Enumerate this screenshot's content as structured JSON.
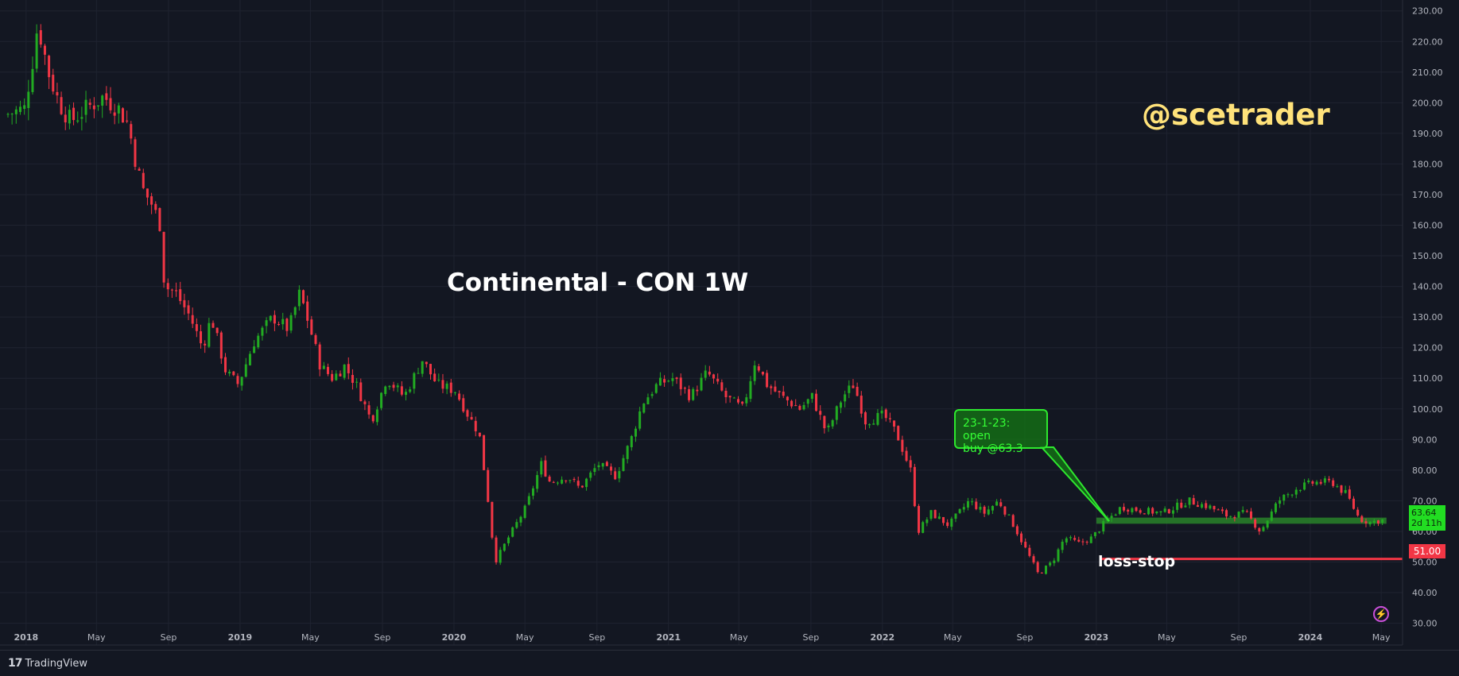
{
  "chart_data": {
    "type": "candlestick",
    "title": "Continental - CON 1W",
    "watermark": "@scetrader",
    "ylim": [
      26,
      232
    ],
    "y_ticks": [
      30,
      40,
      50,
      60,
      70,
      80,
      90,
      100,
      110,
      120,
      130,
      140,
      150,
      160,
      170,
      180,
      190,
      200,
      210,
      220,
      230
    ],
    "y_tick_labels": [
      "30.00",
      "40.00",
      "50.00",
      "60.00",
      "70.00",
      "80.00",
      "90.00",
      "100.00",
      "110.00",
      "120.00",
      "130.00",
      "140.00",
      "150.00",
      "160.00",
      "170.00",
      "180.00",
      "190.00",
      "200.00",
      "210.00",
      "220.00",
      "230.00"
    ],
    "x_range": [
      "2017-12-01",
      "2024-06-01"
    ],
    "x_ticks": [
      {
        "date": "2018-01-01",
        "label": "2018",
        "bold": true
      },
      {
        "date": "2018-05-01",
        "label": "May"
      },
      {
        "date": "2018-09-01",
        "label": "Sep"
      },
      {
        "date": "2019-01-01",
        "label": "2019",
        "bold": true
      },
      {
        "date": "2019-05-01",
        "label": "May"
      },
      {
        "date": "2019-09-01",
        "label": "Sep"
      },
      {
        "date": "2020-01-01",
        "label": "2020",
        "bold": true
      },
      {
        "date": "2020-05-01",
        "label": "May"
      },
      {
        "date": "2020-09-01",
        "label": "Sep"
      },
      {
        "date": "2021-01-01",
        "label": "2021",
        "bold": true
      },
      {
        "date": "2021-05-01",
        "label": "May"
      },
      {
        "date": "2021-09-01",
        "label": "Sep"
      },
      {
        "date": "2022-01-01",
        "label": "2022",
        "bold": true
      },
      {
        "date": "2022-05-01",
        "label": "May"
      },
      {
        "date": "2022-09-01",
        "label": "Sep"
      },
      {
        "date": "2023-01-01",
        "label": "2023",
        "bold": true
      },
      {
        "date": "2023-05-01",
        "label": "May"
      },
      {
        "date": "2023-09-01",
        "label": "Sep"
      },
      {
        "date": "2024-01-01",
        "label": "2024",
        "bold": true
      },
      {
        "date": "2024-05-01",
        "label": "May"
      }
    ],
    "price_path": [
      [
        "2017-12-01",
        196
      ],
      [
        "2018-01-05",
        198
      ],
      [
        "2018-01-20",
        215
      ],
      [
        "2018-01-28",
        226
      ],
      [
        "2018-02-15",
        210
      ],
      [
        "2018-03-05",
        200
      ],
      [
        "2018-03-25",
        194
      ],
      [
        "2018-04-20",
        198
      ],
      [
        "2018-05-20",
        202
      ],
      [
        "2018-06-15",
        198
      ],
      [
        "2018-07-01",
        193
      ],
      [
        "2018-07-15",
        180
      ],
      [
        "2018-07-25",
        172
      ],
      [
        "2018-08-10",
        167
      ],
      [
        "2018-08-25",
        160
      ],
      [
        "2018-09-01",
        140
      ],
      [
        "2018-09-20",
        138
      ],
      [
        "2018-10-15",
        130
      ],
      [
        "2018-11-05",
        120
      ],
      [
        "2018-11-20",
        130
      ],
      [
        "2018-12-15",
        112
      ],
      [
        "2019-01-05",
        108
      ],
      [
        "2019-02-01",
        122
      ],
      [
        "2019-03-05",
        130
      ],
      [
        "2019-04-01",
        126
      ],
      [
        "2019-04-20",
        138
      ],
      [
        "2019-05-05",
        128
      ],
      [
        "2019-05-25",
        114
      ],
      [
        "2019-06-15",
        110
      ],
      [
        "2019-07-05",
        114
      ],
      [
        "2019-07-25",
        108
      ],
      [
        "2019-08-20",
        96
      ],
      [
        "2019-09-15",
        110
      ],
      [
        "2019-10-15",
        104
      ],
      [
        "2019-11-15",
        116
      ],
      [
        "2019-12-10",
        108
      ],
      [
        "2020-01-10",
        106
      ],
      [
        "2020-02-01",
        98
      ],
      [
        "2020-02-20",
        92
      ],
      [
        "2020-03-05",
        72
      ],
      [
        "2020-03-18",
        50
      ],
      [
        "2020-04-10",
        58
      ],
      [
        "2020-05-10",
        68
      ],
      [
        "2020-06-05",
        82
      ],
      [
        "2020-06-20",
        76
      ],
      [
        "2020-07-20",
        78
      ],
      [
        "2020-08-10",
        74
      ],
      [
        "2020-09-10",
        82
      ],
      [
        "2020-10-10",
        78
      ],
      [
        "2020-11-05",
        90
      ],
      [
        "2020-11-25",
        102
      ],
      [
        "2020-12-20",
        108
      ],
      [
        "2021-01-15",
        110
      ],
      [
        "2021-02-15",
        104
      ],
      [
        "2021-03-15",
        112
      ],
      [
        "2021-04-15",
        104
      ],
      [
        "2021-05-15",
        100
      ],
      [
        "2021-06-05",
        116
      ],
      [
        "2021-06-25",
        108
      ],
      [
        "2021-07-20",
        104
      ],
      [
        "2021-08-20",
        100
      ],
      [
        "2021-09-10",
        104
      ],
      [
        "2021-10-05",
        92
      ],
      [
        "2021-11-01",
        104
      ],
      [
        "2021-11-20",
        108
      ],
      [
        "2021-12-10",
        96
      ],
      [
        "2022-01-10",
        98
      ],
      [
        "2022-02-01",
        92
      ],
      [
        "2022-02-25",
        80
      ],
      [
        "2022-03-10",
        60
      ],
      [
        "2022-04-01",
        66
      ],
      [
        "2022-05-01",
        62
      ],
      [
        "2022-06-05",
        70
      ],
      [
        "2022-07-01",
        66
      ],
      [
        "2022-07-25",
        70
      ],
      [
        "2022-08-20",
        62
      ],
      [
        "2022-09-10",
        54
      ],
      [
        "2022-10-01",
        46
      ],
      [
        "2022-10-25",
        50
      ],
      [
        "2022-11-15",
        58
      ],
      [
        "2022-12-10",
        56
      ],
      [
        "2023-01-01",
        58
      ],
      [
        "2023-01-23",
        63
      ],
      [
        "2023-02-20",
        68
      ],
      [
        "2023-03-20",
        67
      ],
      [
        "2023-05-01",
        66
      ],
      [
        "2023-06-15",
        70
      ],
      [
        "2023-07-20",
        68
      ],
      [
        "2023-08-20",
        65
      ],
      [
        "2023-09-20",
        66
      ],
      [
        "2023-10-15",
        60
      ],
      [
        "2023-11-15",
        70
      ],
      [
        "2023-12-15",
        74
      ],
      [
        "2024-01-15",
        76
      ],
      [
        "2024-02-15",
        76
      ],
      [
        "2024-03-10",
        72
      ],
      [
        "2024-04-01",
        64
      ],
      [
        "2024-04-20",
        63
      ],
      [
        "2024-05-05",
        63.64
      ]
    ],
    "support_zone": {
      "from": "2023-01-01",
      "to": "2024-05-10",
      "low": 62.5,
      "high": 64.5
    },
    "stop_line": {
      "from": "2023-01-01",
      "to": "2024-06-01",
      "value": 51
    },
    "current_price": "63.64",
    "countdown": "2d 11h",
    "stop_value_label": "51.00",
    "annotation": {
      "date": "2023-01-23",
      "value": 63.3,
      "line1": "23-1-23: open",
      "line2": "buy @63.3"
    },
    "stop_label": "loss-stop",
    "colors": {
      "up": "#22ab22",
      "down": "#f23645",
      "zone": "#2a8a2a",
      "stop": "#f23645",
      "background": "#131722",
      "grid": "#1f2330",
      "axis_text": "#b2b5be"
    }
  },
  "footer": {
    "brand": "TradingView",
    "brand_mark": "17"
  }
}
